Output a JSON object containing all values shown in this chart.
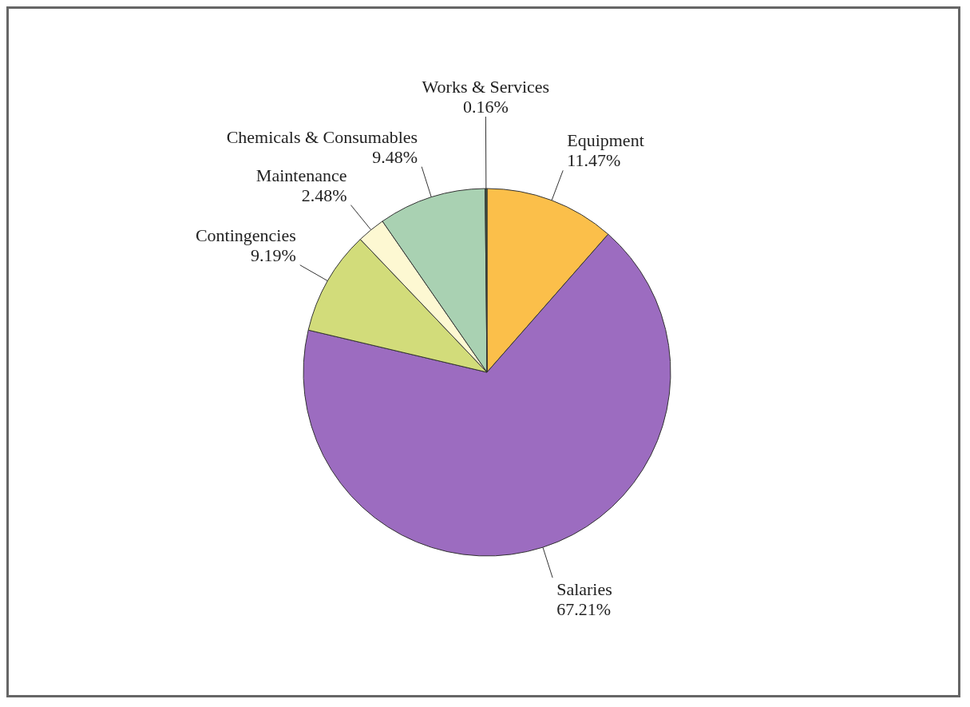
{
  "chart_data": {
    "type": "pie",
    "categories": [
      "Equipment",
      "Salaries",
      "Contingencies",
      "Maintenance",
      "Chemicals & Consumables",
      "Works & Services"
    ],
    "values": [
      11.47,
      67.21,
      9.19,
      2.48,
      9.48,
      0.16
    ],
    "value_labels": [
      "11.47%",
      "67.21%",
      "9.19%",
      "2.48%",
      "9.48%",
      "0.16%"
    ],
    "colors": [
      "#fbbf4a",
      "#9c6cc0",
      "#d2dc7a",
      "#fdf8d2",
      "#a9d1b2",
      "#3d5a45"
    ]
  }
}
